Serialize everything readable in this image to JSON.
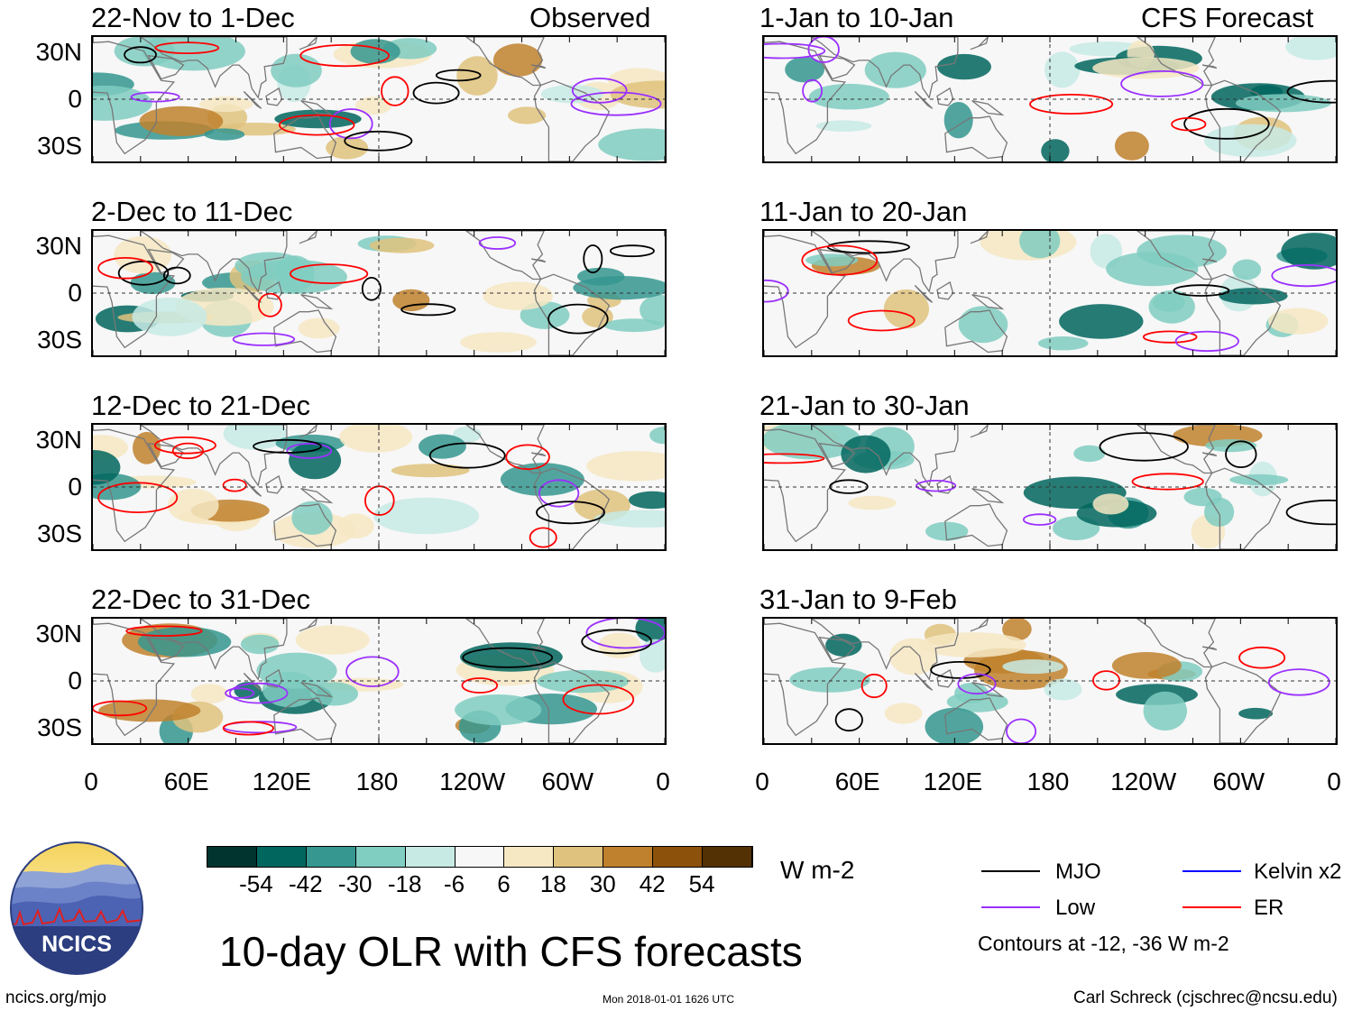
{
  "title": "10-day OLR with CFS forecasts",
  "observed_label": "Observed",
  "forecast_label": "CFS Forecast",
  "panels_left": [
    {
      "period": "22-Nov to 1-Dec"
    },
    {
      "period": "2-Dec to 11-Dec"
    },
    {
      "period": "12-Dec to 21-Dec"
    },
    {
      "period": "22-Dec to 31-Dec"
    }
  ],
  "panels_right": [
    {
      "period": "1-Jan to 10-Jan"
    },
    {
      "period": "11-Jan to 20-Jan"
    },
    {
      "period": "21-Jan to 30-Jan"
    },
    {
      "period": "31-Jan to 9-Feb"
    }
  ],
  "lat_labels": [
    "30N",
    "0",
    "30S"
  ],
  "lon_labels": [
    "0",
    "60E",
    "120E",
    "180",
    "120W",
    "60W",
    "0"
  ],
  "colorbar": {
    "units": "W m-2",
    "ticks": [
      "-54",
      "-42",
      "-30",
      "-18",
      "-6",
      "6",
      "18",
      "30",
      "42",
      "54"
    ],
    "colors": [
      "#01332f",
      "#01665e",
      "#35978f",
      "#80cdc1",
      "#c7eae5",
      "#f7f7f7",
      "#f6e8c3",
      "#dfc27d",
      "#bf812d",
      "#8c510a",
      "#543005"
    ]
  },
  "legend": {
    "items": [
      {
        "label": "MJO",
        "color": "#000000"
      },
      {
        "label": "Low",
        "color": "#9b30ff"
      },
      {
        "label": "Kelvin x2",
        "color": "#0000ff"
      },
      {
        "label": "ER",
        "color": "#ff0000"
      }
    ],
    "note": "Contours at -12, -36 W m-2"
  },
  "logo_text": "NCICS",
  "website": "ncics.org/mjo",
  "timestamp": "Mon 2018-01-01 1626 UTC",
  "author": "Carl Schreck (cjschrec@ncsu.edu)"
}
